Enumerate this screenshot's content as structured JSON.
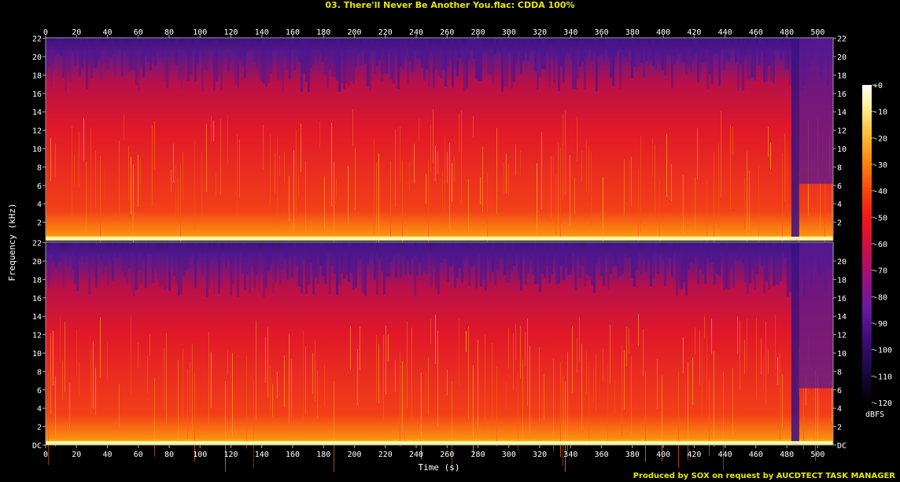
{
  "title": "03. There'll Never Be Another You.flac: CDDA 100%",
  "credit": "Produced by SOX on request by AUCDTECT TASK MANAGER",
  "chart_data": {
    "type": "heatmap",
    "xlabel": "Time (s)",
    "ylabel": "Frequency (kHz)",
    "colorbar_label": "dBFS",
    "xlim": [
      0,
      510
    ],
    "ylim": [
      0,
      22.05
    ],
    "x_ticks": [
      "0",
      "20",
      "40",
      "60",
      "80",
      "100",
      "120",
      "140",
      "160",
      "180",
      "200",
      "220",
      "240",
      "260",
      "280",
      "300",
      "320",
      "340",
      "360",
      "380",
      "400",
      "420",
      "440",
      "460",
      "480",
      "500"
    ],
    "y_ticks_left_top": [
      "22",
      "20",
      "18",
      "16",
      "14",
      "12",
      "10",
      "8",
      "6",
      "4",
      "2"
    ],
    "y_ticks_right_top": [
      "22",
      "20",
      "18",
      "16",
      "14",
      "12",
      "10",
      "8",
      "6",
      "4",
      "2"
    ],
    "y_ticks_left_bottom": [
      "22",
      "20",
      "18",
      "16",
      "14",
      "12",
      "10",
      "8",
      "6",
      "4",
      "2",
      "DC"
    ],
    "y_ticks_right_bottom": [
      "20",
      "18",
      "16",
      "14",
      "12",
      "10",
      "8",
      "6",
      "4",
      "2",
      "DC"
    ],
    "colorbar_ticks": [
      "+0",
      "-10",
      "-20",
      "-30",
      "-40",
      "-50",
      "-60",
      "-70",
      "-80",
      "-90",
      "-100",
      "-110",
      "-120"
    ],
    "channels": [
      "left",
      "right"
    ],
    "colormap": [
      "#000000",
      "#1a0a40",
      "#3c0c78",
      "#6a1aa0",
      "#a0107a",
      "#d01040",
      "#ee1818",
      "#f84010",
      "#fb8010",
      "#fcc040",
      "#fef090",
      "#ffffff"
    ]
  }
}
